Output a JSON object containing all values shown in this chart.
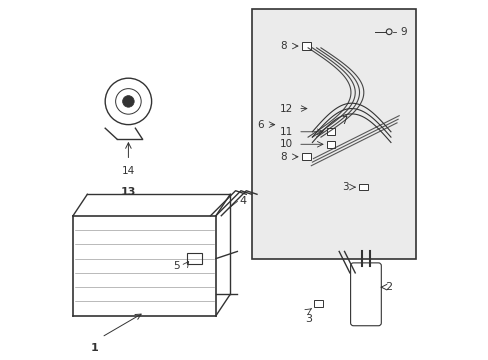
{
  "background_color": "#ffffff",
  "fig_width": 4.89,
  "fig_height": 3.6,
  "dpi": 100,
  "line_color": "#333333",
  "box_bg": "#e8e8e8"
}
